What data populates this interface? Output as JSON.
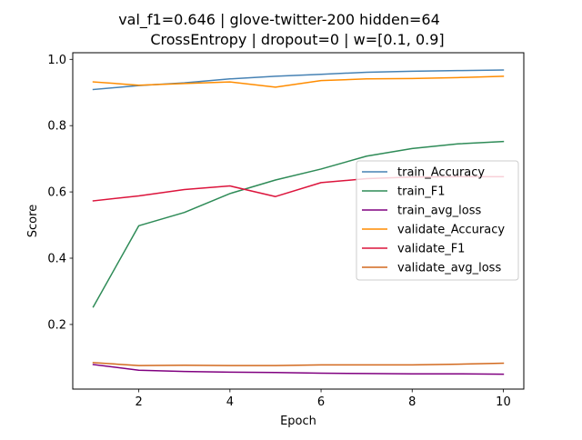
{
  "chart_data": {
    "type": "line",
    "title_line1": "val_f1=0.646 | glove-twitter-200  hidden=64",
    "title_line2": "CrossEntropy | dropout=0 | w=[0.1, 0.9]",
    "xlabel": "Epoch",
    "ylabel": "Score",
    "xlim": [
      0.55,
      10.45
    ],
    "ylim": [
      0.005,
      1.02
    ],
    "xticks": [
      2,
      4,
      6,
      8,
      10
    ],
    "yticks": [
      0.2,
      0.4,
      0.6,
      0.8,
      1.0
    ],
    "xtick_labels": [
      "2",
      "4",
      "6",
      "8",
      "10"
    ],
    "ytick_labels": [
      "0.2",
      "0.4",
      "0.6",
      "0.8",
      "1.0"
    ],
    "grid": false,
    "legend_position": "center-right",
    "x": [
      1,
      2,
      3,
      4,
      5,
      6,
      7,
      8,
      9,
      10
    ],
    "series": [
      {
        "name": "train_Accuracy",
        "color": "#4682b4",
        "values": [
          0.909,
          0.921,
          0.929,
          0.941,
          0.949,
          0.955,
          0.961,
          0.964,
          0.966,
          0.968
        ]
      },
      {
        "name": "train_F1",
        "color": "#2e8b57",
        "values": [
          0.253,
          0.498,
          0.538,
          0.595,
          0.636,
          0.669,
          0.708,
          0.731,
          0.745,
          0.752
        ]
      },
      {
        "name": "train_avg_loss",
        "color": "#800080",
        "values": [
          0.079,
          0.062,
          0.058,
          0.056,
          0.055,
          0.053,
          0.052,
          0.051,
          0.051,
          0.05
        ]
      },
      {
        "name": "validate_Accuracy",
        "color": "#ff8c00",
        "values": [
          0.932,
          0.922,
          0.927,
          0.932,
          0.916,
          0.936,
          0.941,
          0.942,
          0.945,
          0.949
        ]
      },
      {
        "name": "validate_F1",
        "color": "#dc143c",
        "values": [
          0.573,
          0.588,
          0.607,
          0.618,
          0.586,
          0.628,
          0.64,
          0.645,
          0.646,
          0.646
        ]
      },
      {
        "name": "validate_avg_loss",
        "color": "#d2691e",
        "values": [
          0.085,
          0.076,
          0.077,
          0.076,
          0.076,
          0.078,
          0.078,
          0.078,
          0.08,
          0.083
        ]
      }
    ]
  }
}
